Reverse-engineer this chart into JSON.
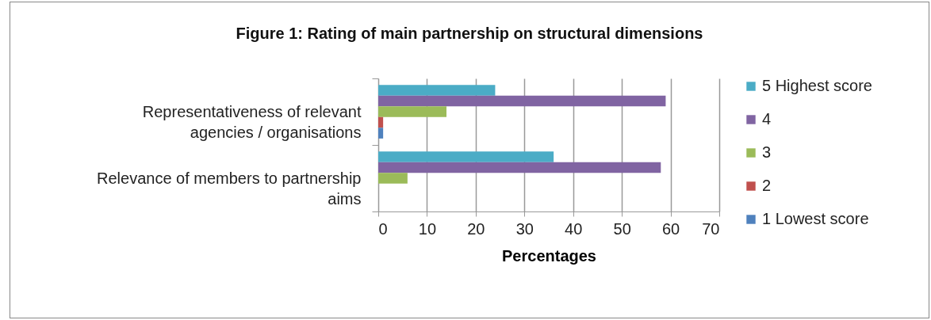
{
  "chart_data": {
    "type": "bar",
    "orientation": "horizontal",
    "title": "Figure 1: Rating of main partnership on structural dimensions",
    "xlabel": "Percentages",
    "categories": [
      "Representativeness of relevant agencies / organisations",
      "Relevance of members to partnership aims"
    ],
    "series": [
      {
        "name": "5 Highest score",
        "color": "#4bacc6",
        "values": [
          24,
          36
        ]
      },
      {
        "name": "4",
        "color": "#8064a2",
        "values": [
          59,
          58
        ]
      },
      {
        "name": "3",
        "color": "#9bbb59",
        "values": [
          14,
          6
        ]
      },
      {
        "name": "2",
        "color": "#c0504d",
        "values": [
          1,
          0
        ]
      },
      {
        "name": "1 Lowest score",
        "color": "#4f81bd",
        "values": [
          1,
          0
        ]
      }
    ],
    "xlim": [
      0,
      70
    ],
    "xticks": [
      0,
      10,
      20,
      30,
      40,
      50,
      60,
      70
    ],
    "grid": "x",
    "legend": "right"
  }
}
